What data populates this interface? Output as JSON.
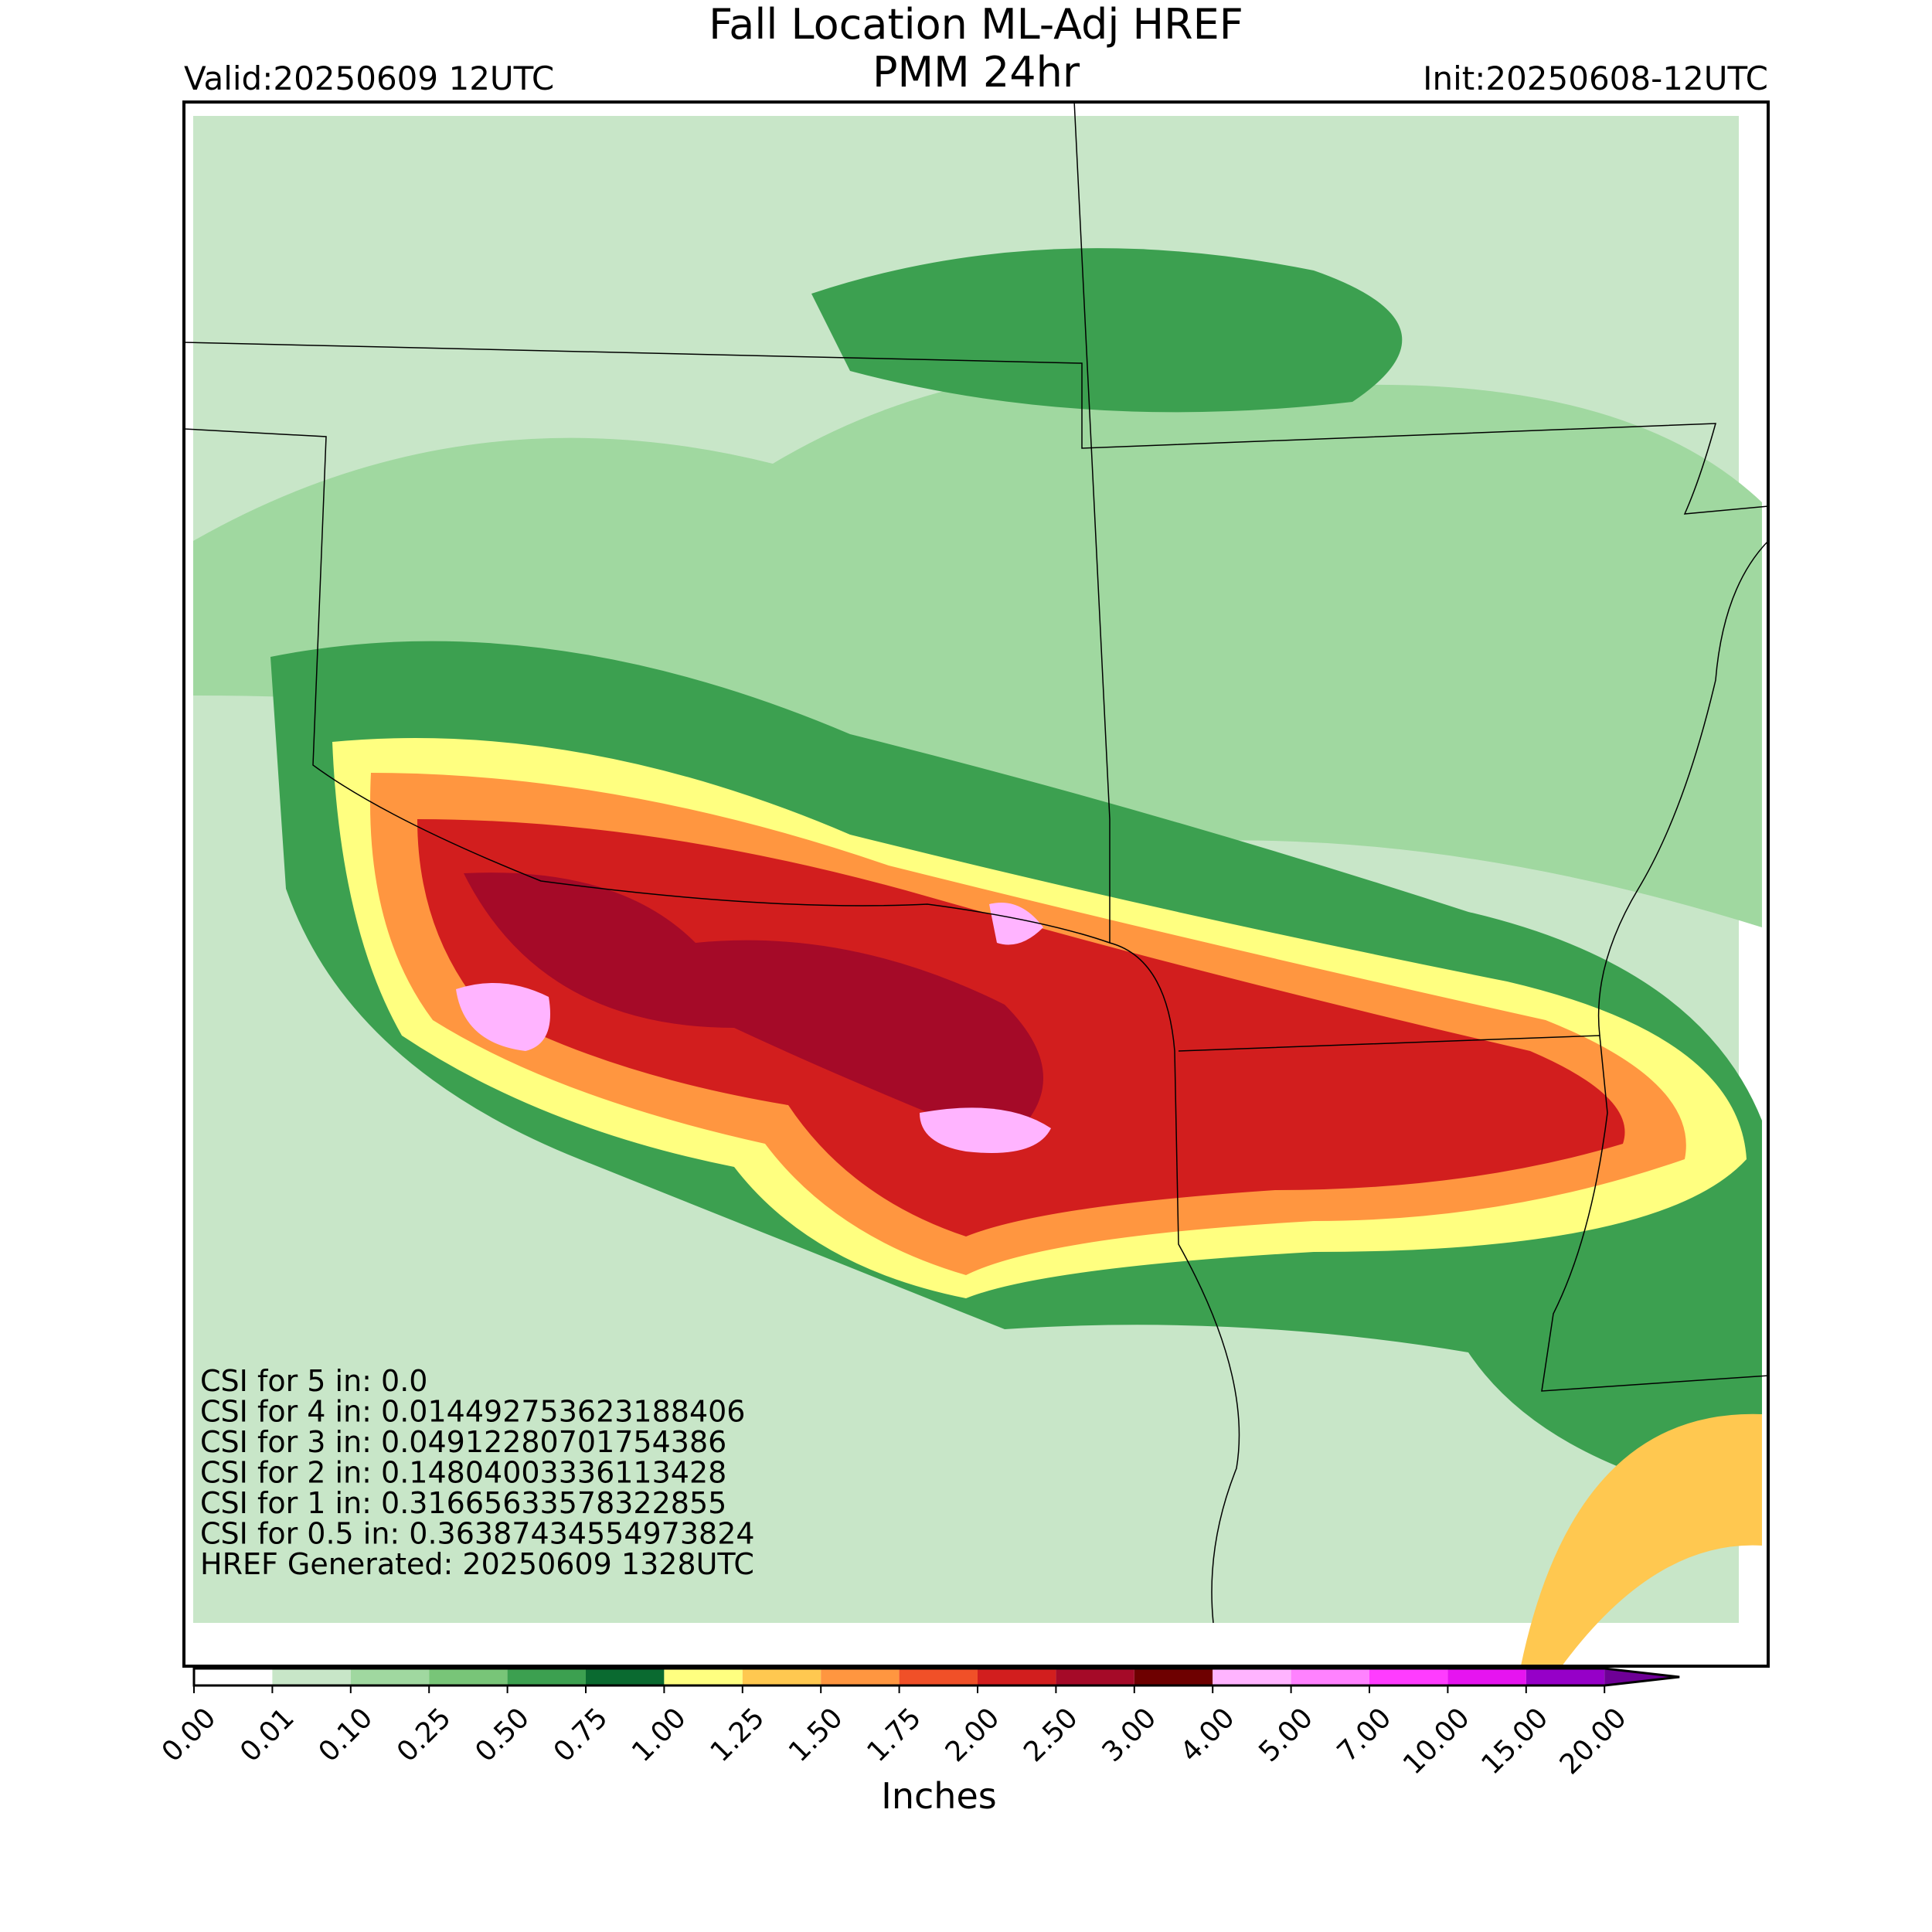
{
  "header": {
    "title": "Fall Location ML-Adj HREF",
    "subtitle": "PMM 24hr",
    "valid": "Valid:20250609 12UTC",
    "init": "Init:20250608-12UTC"
  },
  "stats": [
    "CSI for 5 in: 0.0",
    "CSI for 4 in: 0.014492753623188406",
    "CSI for 3 in: 0.04912280701754386",
    "CSI for 2 in: 0.14804003336113428",
    "CSI for 1 in: 0.31665633578322855",
    "CSI for 0.5 in: 0.36387434554973824",
    "HREF Generated: 20250609 1328UTC"
  ],
  "colorbar": {
    "label": "Inches",
    "ticks": [
      {
        "value": 0,
        "label": "0.00"
      },
      {
        "value": 0.01,
        "label": "0.01"
      },
      {
        "value": 0.1,
        "label": "0.10"
      },
      {
        "value": 0.25,
        "label": "0.25"
      },
      {
        "value": 0.5,
        "label": "0.50"
      },
      {
        "value": 0.75,
        "label": "0.75"
      },
      {
        "value": 1,
        "label": "1.00"
      },
      {
        "value": 1.25,
        "label": "1.25"
      },
      {
        "value": 1.5,
        "label": "1.50"
      },
      {
        "value": 1.75,
        "label": "1.75"
      },
      {
        "value": 2,
        "label": "2.00"
      },
      {
        "value": 2.5,
        "label": "2.50"
      },
      {
        "value": 3,
        "label": "3.00"
      },
      {
        "value": 4,
        "label": "4.00"
      },
      {
        "value": 5,
        "label": "5.00"
      },
      {
        "value": 7,
        "label": "7.00"
      },
      {
        "value": 10,
        "label": "10.00"
      },
      {
        "value": 15,
        "label": "15.00"
      },
      {
        "value": 20,
        "label": "20.00"
      }
    ],
    "colors": [
      "#ffffff",
      "#c8e6c8",
      "#a0d8a0",
      "#78c578",
      "#3ca050",
      "#0a6a30",
      "#ffff80",
      "#ffc850",
      "#ff9640",
      "#f05028",
      "#d21e1e",
      "#a50a28",
      "#6e0000",
      "#ffb4ff",
      "#ff82ff",
      "#ff3cff",
      "#e614f0",
      "#9600c8"
    ],
    "extend_color": "#6e0096"
  }
}
